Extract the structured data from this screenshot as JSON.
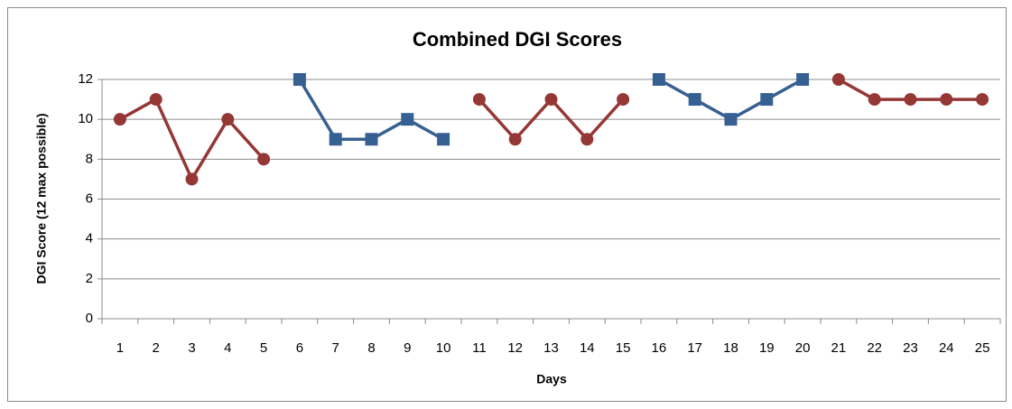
{
  "chart_data": {
    "type": "line",
    "title": "Combined DGI Scores",
    "x_label": "Days",
    "y_label": "DGI Score  (12 max possible)",
    "categories": [
      1,
      2,
      3,
      4,
      5,
      6,
      7,
      8,
      9,
      10,
      11,
      12,
      13,
      14,
      15,
      16,
      17,
      18,
      19,
      20,
      21,
      22,
      23,
      24,
      25
    ],
    "series": [
      {
        "color": "#953735",
        "marker": "circle",
        "values": [
          10,
          11,
          7,
          10,
          8,
          null,
          null,
          null,
          null,
          null,
          11,
          9,
          11,
          9,
          11,
          null,
          null,
          null,
          null,
          null,
          12,
          11,
          11,
          11,
          11
        ]
      },
      {
        "color": "#376092",
        "marker": "square",
        "values": [
          null,
          null,
          null,
          null,
          null,
          12,
          9,
          9,
          10,
          9,
          null,
          null,
          null,
          null,
          null,
          12,
          11,
          10,
          11,
          12,
          null,
          null,
          null,
          null,
          null
        ]
      }
    ],
    "ylim": [
      0,
      12
    ],
    "yticks": [
      0,
      2,
      4,
      6,
      8,
      10,
      12
    ],
    "grid": true
  }
}
